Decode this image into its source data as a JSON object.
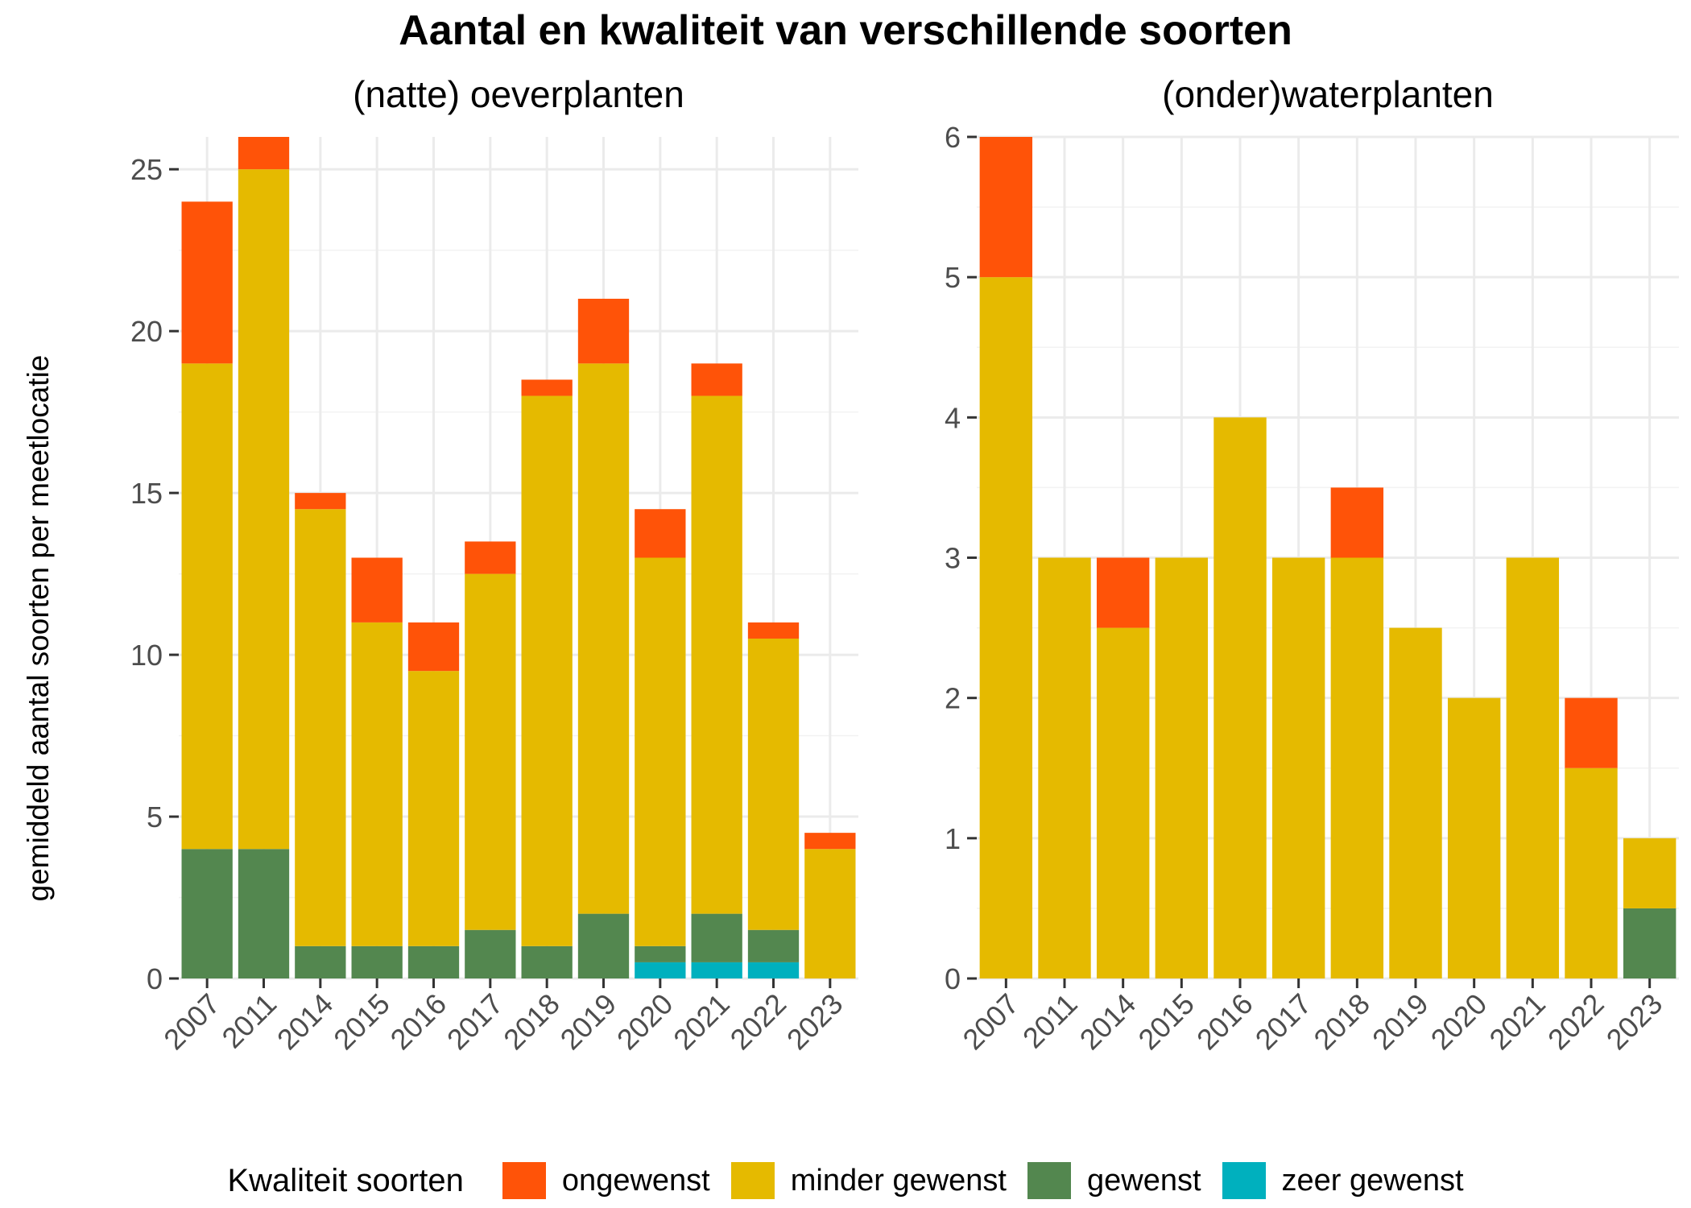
{
  "title": "Aantal en kwaliteit van verschillende soorten",
  "ylabel": "gemiddeld aantal soorten per meetlocatie",
  "legend": {
    "title": "Kwaliteit soorten",
    "items": [
      {
        "label": "ongewenst",
        "color": "#FF5308"
      },
      {
        "label": "minder gewenst",
        "color": "#E5BA00"
      },
      {
        "label": "gewenst",
        "color": "#53874F"
      },
      {
        "label": "zeer gewenst",
        "color": "#00B0BE"
      }
    ]
  },
  "chart_data": [
    {
      "type": "bar",
      "stacked": true,
      "subtitle": "(natte) oeverplanten",
      "categories": [
        "2007",
        "2011",
        "2014",
        "2015",
        "2016",
        "2017",
        "2018",
        "2019",
        "2020",
        "2021",
        "2022",
        "2023"
      ],
      "ylim": [
        0,
        26
      ],
      "yticks": [
        0,
        5,
        10,
        15,
        20,
        25
      ],
      "grid": true,
      "series": [
        {
          "name": "zeer gewenst",
          "color": "#00B0BE",
          "values": [
            0,
            0,
            0,
            0,
            0,
            0,
            0,
            0,
            0.5,
            0.5,
            0.5,
            0
          ]
        },
        {
          "name": "gewenst",
          "color": "#53874F",
          "values": [
            4,
            4,
            1,
            1,
            1,
            1.5,
            1,
            2,
            0.5,
            1.5,
            1,
            0
          ]
        },
        {
          "name": "minder gewenst",
          "color": "#E5BA00",
          "values": [
            15,
            21,
            13.5,
            10,
            8.5,
            11,
            17,
            17,
            12,
            16,
            9,
            4
          ]
        },
        {
          "name": "ongewenst",
          "color": "#FF5308",
          "values": [
            5,
            1,
            0.5,
            2,
            1.5,
            1,
            0.5,
            2,
            1.5,
            1,
            0.5,
            0.5
          ]
        }
      ]
    },
    {
      "type": "bar",
      "stacked": true,
      "subtitle": "(onder)waterplanten",
      "categories": [
        "2007",
        "2011",
        "2014",
        "2015",
        "2016",
        "2017",
        "2018",
        "2019",
        "2020",
        "2021",
        "2022",
        "2023"
      ],
      "ylim": [
        0,
        6
      ],
      "yticks": [
        0,
        1,
        2,
        3,
        4,
        5,
        6
      ],
      "grid": true,
      "series": [
        {
          "name": "zeer gewenst",
          "color": "#00B0BE",
          "values": [
            0,
            0,
            0,
            0,
            0,
            0,
            0,
            0,
            0,
            0,
            0,
            0
          ]
        },
        {
          "name": "gewenst",
          "color": "#53874F",
          "values": [
            0,
            0,
            0,
            0,
            0,
            0,
            0,
            0,
            0,
            0,
            0,
            0.5
          ]
        },
        {
          "name": "minder gewenst",
          "color": "#E5BA00",
          "values": [
            5,
            3,
            2.5,
            3,
            4,
            3,
            3,
            2.5,
            2,
            3,
            1.5,
            0.5
          ]
        },
        {
          "name": "ongewenst",
          "color": "#FF5308",
          "values": [
            1,
            0,
            0.5,
            0,
            0,
            0,
            0.5,
            0,
            0,
            0,
            0.5,
            0
          ]
        }
      ]
    }
  ]
}
